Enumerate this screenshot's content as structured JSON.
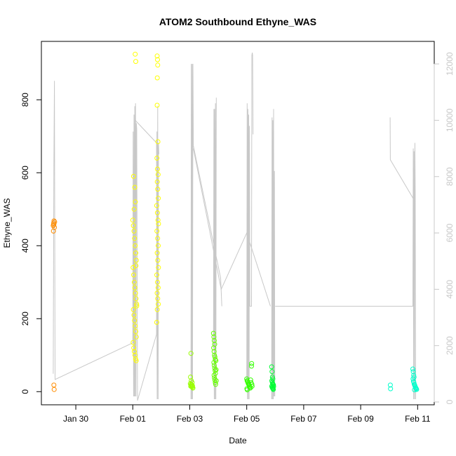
{
  "chart_data": {
    "type": "scatter",
    "title": "ATOM2 Southbound Ethyne_WAS",
    "xlabel": "Date",
    "ylabel": "Ethyne_WAS",
    "xlim": [
      "2017-01-28T19:00",
      "2017-02-11T14:00"
    ],
    "ylim": [
      -36,
      960
    ],
    "y2lim": [
      -100,
      12800
    ],
    "x_ticks": [
      {
        "label": "Jan 30",
        "date": "2017-01-30"
      },
      {
        "label": "Feb 01",
        "date": "2017-02-01"
      },
      {
        "label": "Feb 03",
        "date": "2017-02-03"
      },
      {
        "label": "Feb 05",
        "date": "2017-02-05"
      },
      {
        "label": "Feb 07",
        "date": "2017-02-07"
      },
      {
        "label": "Feb 09",
        "date": "2017-02-09"
      },
      {
        "label": "Feb 11",
        "date": "2017-02-11"
      }
    ],
    "y_ticks": [
      0,
      200,
      400,
      600,
      800
    ],
    "y2_ticks": [
      0,
      2000,
      4000,
      6000,
      8000,
      10000,
      12000
    ],
    "grid": false,
    "legend": "none",
    "secondary_line_color": "#c8c8c8",
    "series": [
      {
        "color": "#ff8c00",
        "points": [
          [
            "2017-01-29T05:00",
            455
          ],
          [
            "2017-01-29T05:20",
            462
          ],
          [
            "2017-01-29T05:40",
            468
          ],
          [
            "2017-01-29T06:00",
            450
          ],
          [
            "2017-01-29T05:10",
            440
          ],
          [
            "2017-01-29T05:30",
            458
          ],
          [
            "2017-01-29T06:10",
            465
          ],
          [
            "2017-01-29T05:30",
            18
          ],
          [
            "2017-01-29T05:45",
            6
          ]
        ]
      },
      {
        "color": "#ffff00",
        "points": [
          [
            "2017-02-01T02:00",
            925
          ],
          [
            "2017-02-01T02:30",
            905
          ],
          [
            "2017-02-01T00:00",
            470
          ],
          [
            "2017-02-01T00:30",
            455
          ],
          [
            "2017-02-01T01:00",
            440
          ],
          [
            "2017-02-01T01:30",
            420
          ],
          [
            "2017-02-01T02:00",
            400
          ],
          [
            "2017-02-01T02:30",
            380
          ],
          [
            "2017-02-01T03:00",
            360
          ],
          [
            "2017-02-01T00:15",
            340
          ],
          [
            "2017-02-01T00:45",
            320
          ],
          [
            "2017-02-01T01:15",
            300
          ],
          [
            "2017-02-01T01:45",
            285
          ],
          [
            "2017-02-01T02:15",
            270
          ],
          [
            "2017-02-01T02:45",
            255
          ],
          [
            "2017-02-01T03:15",
            240
          ],
          [
            "2017-02-01T00:30",
            225
          ],
          [
            "2017-02-01T01:00",
            210
          ],
          [
            "2017-02-01T01:30",
            195
          ],
          [
            "2017-02-01T02:00",
            180
          ],
          [
            "2017-02-01T02:30",
            165
          ],
          [
            "2017-02-01T03:00",
            150
          ],
          [
            "2017-02-01T00:20",
            135
          ],
          [
            "2017-02-01T00:50",
            120
          ],
          [
            "2017-02-01T01:20",
            110
          ],
          [
            "2017-02-01T01:50",
            100
          ],
          [
            "2017-02-01T02:20",
            90
          ],
          [
            "2017-02-01T02:50",
            85
          ],
          [
            "2017-02-01T00:40",
            590
          ],
          [
            "2017-02-01T01:40",
            560
          ],
          [
            "2017-02-01T02:10",
            520
          ],
          [
            "2017-02-01T03:20",
            235
          ],
          [
            "2017-02-01T01:10",
            500
          ],
          [
            "2017-02-01T02:40",
            345
          ],
          [
            "2017-02-01T20:30",
            920
          ],
          [
            "2017-02-01T20:50",
            910
          ],
          [
            "2017-02-01T21:00",
            895
          ],
          [
            "2017-02-01T20:40",
            860
          ],
          [
            "2017-02-01T20:30",
            785
          ],
          [
            "2017-02-01T21:10",
            685
          ],
          [
            "2017-02-01T20:20",
            640
          ],
          [
            "2017-02-01T20:50",
            610
          ],
          [
            "2017-02-01T21:20",
            595
          ],
          [
            "2017-02-01T20:40",
            575
          ],
          [
            "2017-02-01T21:00",
            555
          ],
          [
            "2017-02-01T21:30",
            530
          ],
          [
            "2017-02-01T20:10",
            510
          ],
          [
            "2017-02-01T20:45",
            490
          ],
          [
            "2017-02-01T21:15",
            470
          ],
          [
            "2017-02-01T21:40",
            460
          ],
          [
            "2017-02-01T20:20",
            440
          ],
          [
            "2017-02-01T20:55",
            420
          ],
          [
            "2017-02-01T21:25",
            400
          ],
          [
            "2017-02-01T20:35",
            380
          ],
          [
            "2017-02-01T21:05",
            360
          ],
          [
            "2017-02-01T21:35",
            340
          ],
          [
            "2017-02-01T20:15",
            320
          ],
          [
            "2017-02-01T20:50",
            300
          ],
          [
            "2017-02-01T21:20",
            285
          ],
          [
            "2017-02-01T20:30",
            270
          ],
          [
            "2017-02-01T21:00",
            255
          ],
          [
            "2017-02-01T21:30",
            240
          ],
          [
            "2017-02-01T20:40",
            225
          ],
          [
            "2017-02-01T20:10",
            190
          ]
        ]
      },
      {
        "color": "#99ff00",
        "points": [
          [
            "2017-02-03T01:00",
            105
          ],
          [
            "2017-02-03T00:40",
            40
          ],
          [
            "2017-02-03T01:20",
            30
          ],
          [
            "2017-02-03T02:00",
            25
          ],
          [
            "2017-02-03T00:30",
            22
          ],
          [
            "2017-02-03T01:10",
            20
          ],
          [
            "2017-02-03T01:40",
            18
          ],
          [
            "2017-02-03T02:20",
            16
          ],
          [
            "2017-02-03T00:50",
            15
          ],
          [
            "2017-02-03T01:30",
            14
          ],
          [
            "2017-02-03T02:10",
            12
          ],
          [
            "2017-02-03T02:40",
            10
          ]
        ]
      },
      {
        "color": "#66ff00",
        "points": [
          [
            "2017-02-03T20:00",
            160
          ],
          [
            "2017-02-03T20:20",
            150
          ],
          [
            "2017-02-03T20:40",
            140
          ],
          [
            "2017-02-03T21:00",
            130
          ],
          [
            "2017-02-03T20:10",
            120
          ],
          [
            "2017-02-03T20:30",
            110
          ],
          [
            "2017-02-03T20:50",
            100
          ],
          [
            "2017-02-03T21:10",
            95
          ],
          [
            "2017-02-03T21:30",
            88
          ],
          [
            "2017-02-03T20:20",
            80
          ],
          [
            "2017-02-03T20:40",
            72
          ],
          [
            "2017-02-03T21:00",
            65
          ],
          [
            "2017-02-03T21:20",
            58
          ],
          [
            "2017-02-03T21:40",
            50
          ],
          [
            "2017-02-03T20:30",
            45
          ],
          [
            "2017-02-03T20:50",
            38
          ],
          [
            "2017-02-03T21:10",
            32
          ],
          [
            "2017-02-03T21:30",
            25
          ],
          [
            "2017-02-03T21:50",
            20
          ],
          [
            "2017-02-03T22:10",
            60
          ],
          [
            "2017-02-03T22:20",
            30
          ],
          [
            "2017-02-03T22:00",
            85
          ]
        ]
      },
      {
        "color": "#33ff00",
        "points": [
          [
            "2017-02-05T00:00",
            35
          ],
          [
            "2017-02-05T00:20",
            30
          ],
          [
            "2017-02-05T00:40",
            28
          ],
          [
            "2017-02-05T01:00",
            25
          ],
          [
            "2017-02-05T01:20",
            22
          ],
          [
            "2017-02-05T01:40",
            20
          ],
          [
            "2017-02-05T02:00",
            18
          ],
          [
            "2017-02-05T02:20",
            15
          ],
          [
            "2017-02-05T02:40",
            12
          ],
          [
            "2017-02-05T03:00",
            10
          ],
          [
            "2017-02-05T00:10",
            8
          ],
          [
            "2017-02-05T00:30",
            5
          ],
          [
            "2017-02-05T03:20",
            32
          ],
          [
            "2017-02-05T04:00",
            70
          ],
          [
            "2017-02-05T04:10",
            77
          ],
          [
            "2017-02-05T03:40",
            25
          ],
          [
            "2017-02-05T04:20",
            20
          ],
          [
            "2017-02-05T04:30",
            15
          ]
        ]
      },
      {
        "color": "#00ff33",
        "points": [
          [
            "2017-02-05T21:00",
            68
          ],
          [
            "2017-02-05T21:20",
            55
          ],
          [
            "2017-02-05T21:40",
            40
          ],
          [
            "2017-02-05T22:00",
            35
          ],
          [
            "2017-02-05T21:10",
            30
          ],
          [
            "2017-02-05T21:30",
            26
          ],
          [
            "2017-02-05T21:50",
            22
          ],
          [
            "2017-02-05T22:10",
            20
          ],
          [
            "2017-02-05T22:30",
            18
          ],
          [
            "2017-02-05T21:05",
            15
          ],
          [
            "2017-02-05T21:25",
            12
          ],
          [
            "2017-02-05T21:45",
            10
          ],
          [
            "2017-02-05T22:05",
            8
          ],
          [
            "2017-02-05T22:25",
            6
          ],
          [
            "2017-02-05T22:40",
            14
          ]
        ]
      },
      {
        "color": "#00ffcc",
        "points": [
          [
            "2017-02-10T01:00",
            18
          ],
          [
            "2017-02-10T01:10",
            8
          ],
          [
            "2017-02-10T20:00",
            62
          ],
          [
            "2017-02-10T20:20",
            55
          ],
          [
            "2017-02-10T20:40",
            45
          ],
          [
            "2017-02-10T21:00",
            40
          ],
          [
            "2017-02-10T20:10",
            35
          ],
          [
            "2017-02-10T20:30",
            28
          ],
          [
            "2017-02-10T20:50",
            25
          ],
          [
            "2017-02-10T21:10",
            20
          ],
          [
            "2017-02-10T21:30",
            18
          ],
          [
            "2017-02-10T21:50",
            15
          ],
          [
            "2017-02-10T22:10",
            12
          ],
          [
            "2017-02-10T22:30",
            10
          ],
          [
            "2017-02-10T22:50",
            8
          ],
          [
            "2017-02-10T23:10",
            6
          ],
          [
            "2017-02-10T21:20",
            5
          ]
        ]
      }
    ],
    "secondary_segments": [
      [
        [
          "2017-01-29T05:00",
          1000
        ],
        [
          "2017-01-29T05:30",
          8400
        ],
        [
          "2017-01-29T06:00",
          11400
        ],
        [
          "2017-01-29T06:30",
          800
        ],
        [
          "2017-02-01T00:00",
          2100
        ],
        [
          "2017-02-01T00:20",
          9600
        ],
        [
          "2017-02-01T00:40",
          200
        ],
        [
          "2017-02-01T01:00",
          10200
        ],
        [
          "2017-02-01T01:20",
          200
        ],
        [
          "2017-02-01T01:40",
          10500
        ],
        [
          "2017-02-01T02:00",
          200
        ],
        [
          "2017-02-01T02:20",
          10600
        ],
        [
          "2017-02-01T02:40",
          200
        ],
        [
          "2017-02-01T03:00",
          9900
        ],
        [
          "2017-02-01T03:20",
          9700
        ],
        [
          "2017-02-01T04:00",
          50
        ],
        [
          "2017-02-01T20:00",
          2400
        ],
        [
          "2017-02-01T20:20",
          9600
        ],
        [
          "2017-02-01T20:40",
          100
        ],
        [
          "2017-02-01T21:00",
          10500
        ],
        [
          "2017-02-01T21:20",
          100
        ],
        [
          "2017-02-01T21:40",
          9200
        ],
        [
          "2017-02-01T22:00",
          8800
        ]
      ],
      [
        [
          "2017-02-03T01:00",
          100
        ],
        [
          "2017-02-03T01:20",
          12000
        ],
        [
          "2017-02-03T01:40",
          100
        ],
        [
          "2017-02-03T02:00",
          12000
        ],
        [
          "2017-02-03T02:20",
          100
        ],
        [
          "2017-02-03T02:40",
          12000
        ],
        [
          "2017-02-03T03:00",
          9100
        ],
        [
          "2017-02-04T02:00",
          4400
        ],
        [
          "2017-02-04T03:00",
          3400
        ]
      ],
      [
        [
          "2017-02-03T20:00",
          1900
        ],
        [
          "2017-02-03T20:20",
          10400
        ],
        [
          "2017-02-03T20:40",
          100
        ],
        [
          "2017-02-03T21:00",
          10400
        ],
        [
          "2017-02-03T21:20",
          100
        ],
        [
          "2017-02-03T21:40",
          10600
        ],
        [
          "2017-02-03T22:00",
          100
        ],
        [
          "2017-02-03T22:20",
          10800
        ]
      ],
      [
        [
          "2017-02-05T00:00",
          800
        ],
        [
          "2017-02-05T00:20",
          10600
        ],
        [
          "2017-02-05T00:40",
          100
        ],
        [
          "2017-02-05T01:00",
          10400
        ],
        [
          "2017-02-05T01:20",
          100
        ],
        [
          "2017-02-05T01:40",
          10200
        ],
        [
          "2017-02-05T02:00",
          100
        ],
        [
          "2017-02-05T02:20",
          9800
        ],
        [
          "2017-02-05T02:40",
          3400
        ],
        [
          "2017-02-05T04:00",
          3400
        ],
        [
          "2017-02-05T04:20",
          12300
        ],
        [
          "2017-02-05T04:40",
          12400
        ],
        [
          "2017-02-05T05:00",
          12300
        ],
        [
          "2017-02-05T05:20",
          9500
        ]
      ],
      [
        [
          "2017-02-05T21:00",
          100
        ],
        [
          "2017-02-05T21:20",
          10100
        ],
        [
          "2017-02-05T21:40",
          100
        ],
        [
          "2017-02-05T22:00",
          10000
        ],
        [
          "2017-02-05T22:20",
          100
        ],
        [
          "2017-02-05T22:40",
          10400
        ],
        [
          "2017-02-05T23:00",
          200
        ],
        [
          "2017-02-05T23:20",
          8200
        ],
        [
          "2017-02-05T23:40",
          200
        ]
      ],
      [
        [
          "2017-02-06T00:00",
          3400
        ],
        [
          "2017-02-10T20:00",
          3400
        ],
        [
          "2017-02-10T20:20",
          9000
        ],
        [
          "2017-02-10T20:40",
          100
        ],
        [
          "2017-02-10T21:00",
          8900
        ],
        [
          "2017-02-10T21:20",
          100
        ],
        [
          "2017-02-10T21:40",
          9200
        ],
        [
          "2017-02-10T22:00",
          7400
        ],
        [
          "2017-02-10T22:20",
          100
        ]
      ],
      [
        [
          "2017-02-10T00:50",
          10100
        ],
        [
          "2017-02-10T01:00",
          8600
        ],
        [
          "2017-02-10T22:00",
          7100
        ]
      ],
      [
        [
          "2017-02-01T02:00",
          10000
        ],
        [
          "2017-02-01T20:00",
          9200
        ],
        [
          "2017-02-01T20:30",
          100
        ]
      ],
      [
        [
          "2017-02-03T03:00",
          9000
        ],
        [
          "2017-02-04T02:30",
          4000
        ],
        [
          "2017-02-05T00:00",
          6000
        ],
        [
          "2017-02-05T20:00",
          3400
        ]
      ]
    ]
  }
}
